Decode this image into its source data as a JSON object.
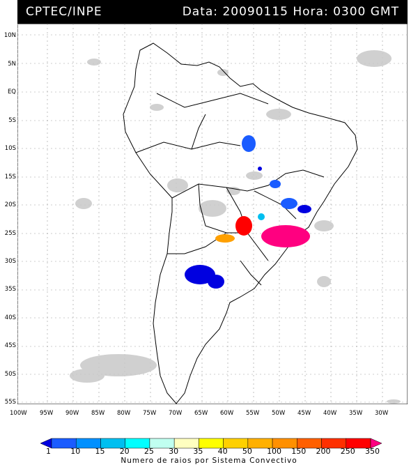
{
  "header": {
    "left": "CPTEC/INPE",
    "right": "Data: 20090115 Hora: 0300 GMT"
  },
  "lat_labels": [
    "10N",
    "5N",
    "EQ",
    "5S",
    "10S",
    "15S",
    "20S",
    "25S",
    "30S",
    "35S",
    "40S",
    "45S",
    "50S",
    "55S"
  ],
  "lon_labels": [
    "100W",
    "95W",
    "90W",
    "85W",
    "80W",
    "75W",
    "70W",
    "65W",
    "60W",
    "55W",
    "50W",
    "45W",
    "40W",
    "35W",
    "30W"
  ],
  "legend": {
    "values": [
      "1",
      "10",
      "15",
      "20",
      "25",
      "30",
      "35",
      "40",
      "50",
      "100",
      "150",
      "200",
      "250",
      "350"
    ],
    "colors": [
      "#0000e0",
      "#1a5cff",
      "#0090ff",
      "#00bff0",
      "#00ffff",
      "#c0fff0",
      "#ffffc0",
      "#ffff00",
      "#ffd000",
      "#ffb000",
      "#ff9000",
      "#ff6000",
      "#ff3000",
      "#ff0000",
      "#ff0080"
    ],
    "caption": "Numero de raios por Sistema Convectivo"
  }
}
